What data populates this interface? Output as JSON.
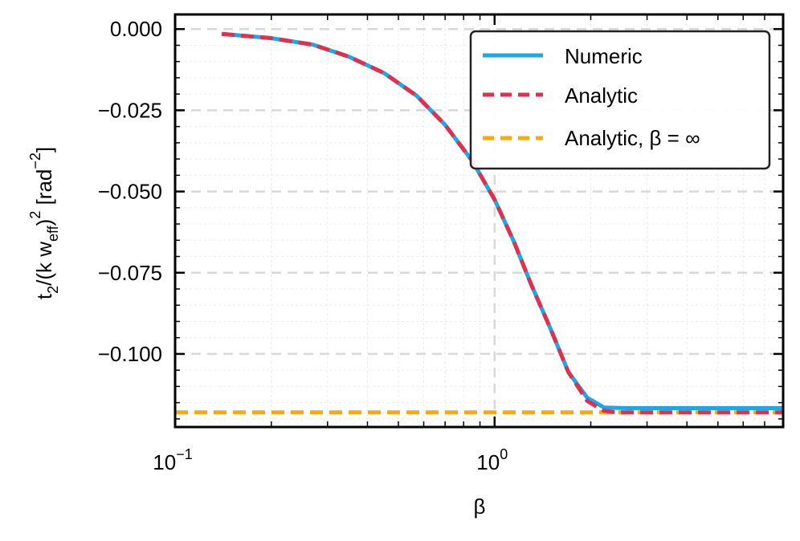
{
  "chart_data": {
    "type": "line",
    "xscale": "log",
    "xlim": [
      0.1,
      8.0
    ],
    "ylim": [
      -0.1225,
      0.0045
    ],
    "xticks": [
      {
        "value": 0.1,
        "base": "10",
        "exp": "−1"
      },
      {
        "value": 1.0,
        "base": "10",
        "exp": "0"
      }
    ],
    "yticks": [
      {
        "value": 0.0,
        "label": "0.000"
      },
      {
        "value": -0.025,
        "label": "−0.025"
      },
      {
        "value": -0.05,
        "label": "−0.050"
      },
      {
        "value": -0.075,
        "label": "−0.075"
      },
      {
        "value": -0.1,
        "label": "−0.100"
      }
    ],
    "xlabel": "β",
    "ylabel": {
      "t": "t",
      "sub2": "2",
      "mid": "/(k w",
      "subeff": "eff",
      "close": ")",
      "sup2": "2",
      "unit": " [rad",
      "unitexp": "−2",
      "end": "]"
    },
    "grid": true,
    "legend_position": "top-right",
    "series": [
      {
        "name": "Numeric",
        "color": "#1aa7ec",
        "style": "solid",
        "x": [
          0.14,
          0.2,
          0.27,
          0.35,
          0.45,
          0.57,
          0.7,
          0.85,
          1.0,
          1.15,
          1.3,
          1.5,
          1.7,
          1.95,
          2.2,
          2.6,
          3.0,
          4.0,
          5.0,
          6.5,
          8.0
        ],
        "y": [
          -0.0015,
          -0.0028,
          -0.0048,
          -0.0085,
          -0.0135,
          -0.0205,
          -0.0295,
          -0.0405,
          -0.0525,
          -0.0655,
          -0.0785,
          -0.0925,
          -0.1055,
          -0.1135,
          -0.1165,
          -0.1167,
          -0.1167,
          -0.1167,
          -0.1167,
          -0.1167,
          -0.1167
        ]
      },
      {
        "name": "Analytic",
        "color": "#e03050",
        "style": "dashed",
        "x": [
          0.14,
          0.2,
          0.27,
          0.35,
          0.45,
          0.57,
          0.7,
          0.85,
          1.0,
          1.15,
          1.3,
          1.5,
          1.7,
          1.95,
          2.2,
          2.4,
          2.6,
          3.0,
          4.0,
          5.0,
          6.5,
          8.0
        ],
        "y": [
          -0.0015,
          -0.0028,
          -0.0048,
          -0.0085,
          -0.0135,
          -0.0205,
          -0.0295,
          -0.0405,
          -0.0525,
          -0.0655,
          -0.0785,
          -0.0925,
          -0.1055,
          -0.1145,
          -0.1175,
          -0.118,
          -0.118,
          -0.118,
          -0.118,
          -0.118,
          -0.118,
          -0.118
        ]
      },
      {
        "name": "Analytic, β = ∞",
        "color": "#ffa800",
        "style": "dashed",
        "x": [
          0.1,
          8.0
        ],
        "y": [
          -0.118,
          -0.118
        ]
      }
    ]
  }
}
